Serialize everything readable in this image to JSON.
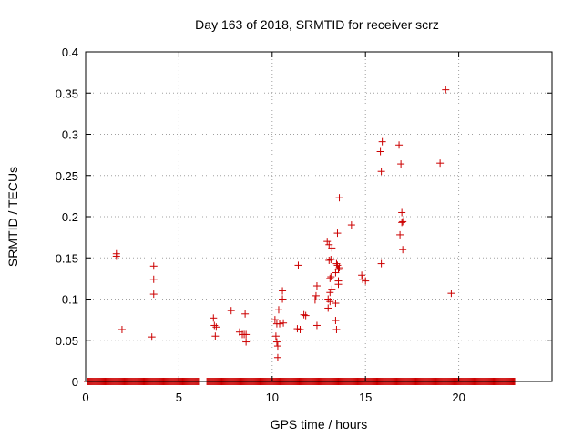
{
  "chart_data": {
    "type": "scatter",
    "title": "Day 163 of 2018, SRMTID for receiver scrz",
    "xlabel": "GPS time / hours",
    "ylabel": "SRMTID / TECUs",
    "xlim": [
      0,
      25
    ],
    "ylim": [
      0,
      0.4
    ],
    "xticks": [
      0,
      5,
      10,
      15,
      20
    ],
    "yticks": [
      0,
      0.05,
      0.1,
      0.15,
      0.2,
      0.25,
      0.3,
      0.35,
      0.4
    ],
    "xtick_labels": [
      "0",
      "5",
      "10",
      "15",
      "20"
    ],
    "ytick_labels": [
      "0",
      "0.05",
      "0.1",
      "0.15",
      "0.2",
      "0.25",
      "0.3",
      "0.35",
      "0.4"
    ],
    "grid": true,
    "marker": "+",
    "color": "#cc0000",
    "baseline": {
      "y": 0,
      "x_ranges": [
        [
          0.1,
          6.1
        ],
        [
          6.5,
          23.0
        ]
      ]
    },
    "series": [
      {
        "x": [
          1.65,
          1.65,
          1.95,
          3.55,
          3.65,
          3.65,
          3.65,
          6.85,
          6.9,
          6.95,
          7.0,
          7.8,
          8.25,
          8.4,
          8.5,
          8.55,
          8.6,
          8.6,
          10.15,
          10.2,
          10.25,
          10.25,
          10.3,
          10.3,
          10.35,
          10.4,
          10.55,
          10.55,
          10.6,
          11.35,
          11.4,
          11.5,
          11.7,
          11.8,
          12.3,
          12.35,
          12.4,
          12.4,
          12.95,
          13.0,
          13.0,
          13.05,
          13.05,
          13.1,
          13.1,
          13.1,
          13.15,
          13.15,
          13.2,
          13.2,
          13.4,
          13.4,
          13.4,
          13.45,
          13.45,
          13.5,
          13.5,
          13.55,
          13.55,
          13.55,
          13.6,
          13.6,
          14.25,
          14.8,
          14.85,
          15.0,
          15.8,
          15.85,
          15.85,
          15.9,
          16.8,
          16.85,
          16.9,
          16.95,
          16.95,
          17.0,
          17.0,
          19.0,
          19.3,
          19.6
        ],
        "y": [
          0.155,
          0.152,
          0.063,
          0.054,
          0.14,
          0.124,
          0.106,
          0.077,
          0.068,
          0.055,
          0.066,
          0.086,
          0.06,
          0.057,
          0.057,
          0.082,
          0.048,
          0.057,
          0.075,
          0.055,
          0.07,
          0.048,
          0.043,
          0.029,
          0.087,
          0.07,
          0.11,
          0.1,
          0.071,
          0.064,
          0.141,
          0.063,
          0.081,
          0.08,
          0.099,
          0.104,
          0.116,
          0.068,
          0.17,
          0.1,
          0.089,
          0.166,
          0.147,
          0.125,
          0.108,
          0.097,
          0.148,
          0.127,
          0.162,
          0.112,
          0.132,
          0.095,
          0.074,
          0.063,
          0.143,
          0.18,
          0.141,
          0.118,
          0.136,
          0.122,
          0.223,
          0.138,
          0.19,
          0.129,
          0.124,
          0.122,
          0.279,
          0.143,
          0.255,
          0.291,
          0.287,
          0.178,
          0.264,
          0.193,
          0.205,
          0.16,
          0.194,
          0.265,
          0.354,
          0.107
        ]
      }
    ]
  }
}
